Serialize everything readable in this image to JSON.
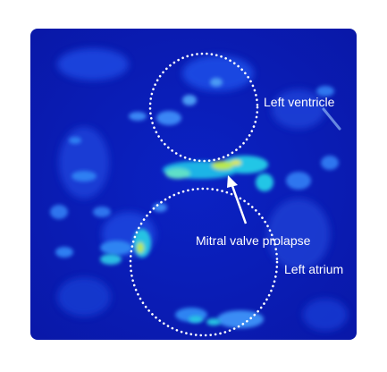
{
  "image": {
    "description_kind": "echocardiogram heatmap overlay",
    "colors": {
      "background": "#ffffff",
      "panel_base": "#0a1fb8",
      "tissue_mid": "#2a6cf0",
      "tissue_high": "#21c8e8",
      "tissue_peak": "#d8e83a",
      "annotation": "#ffffff"
    }
  },
  "labels": {
    "left_ventricle": "Left ventricle",
    "mitral_valve_prolapse": "Mitral valve prolapse",
    "left_atrium": "Left atrium"
  }
}
